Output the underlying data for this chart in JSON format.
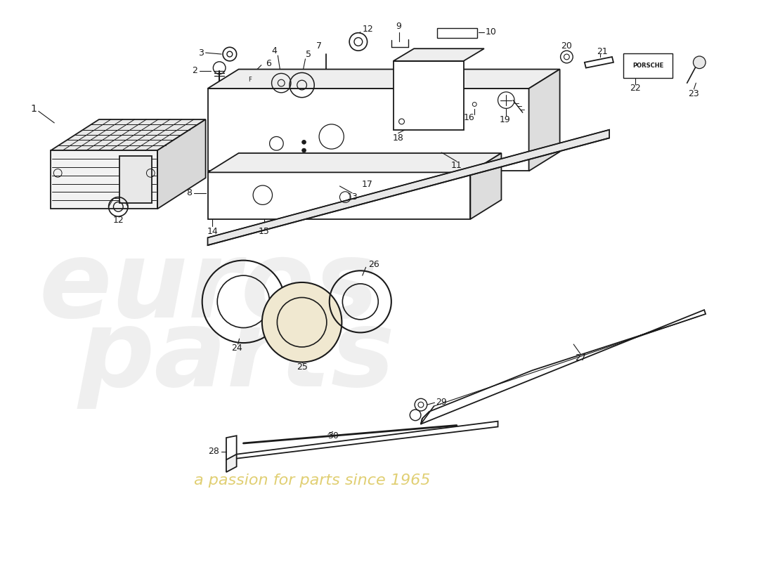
{
  "bg_color": "#ffffff",
  "line_color": "#1a1a1a",
  "watermark1": "euros",
  "watermark2": "parts",
  "watermark3": "a passion for parts since 1965"
}
